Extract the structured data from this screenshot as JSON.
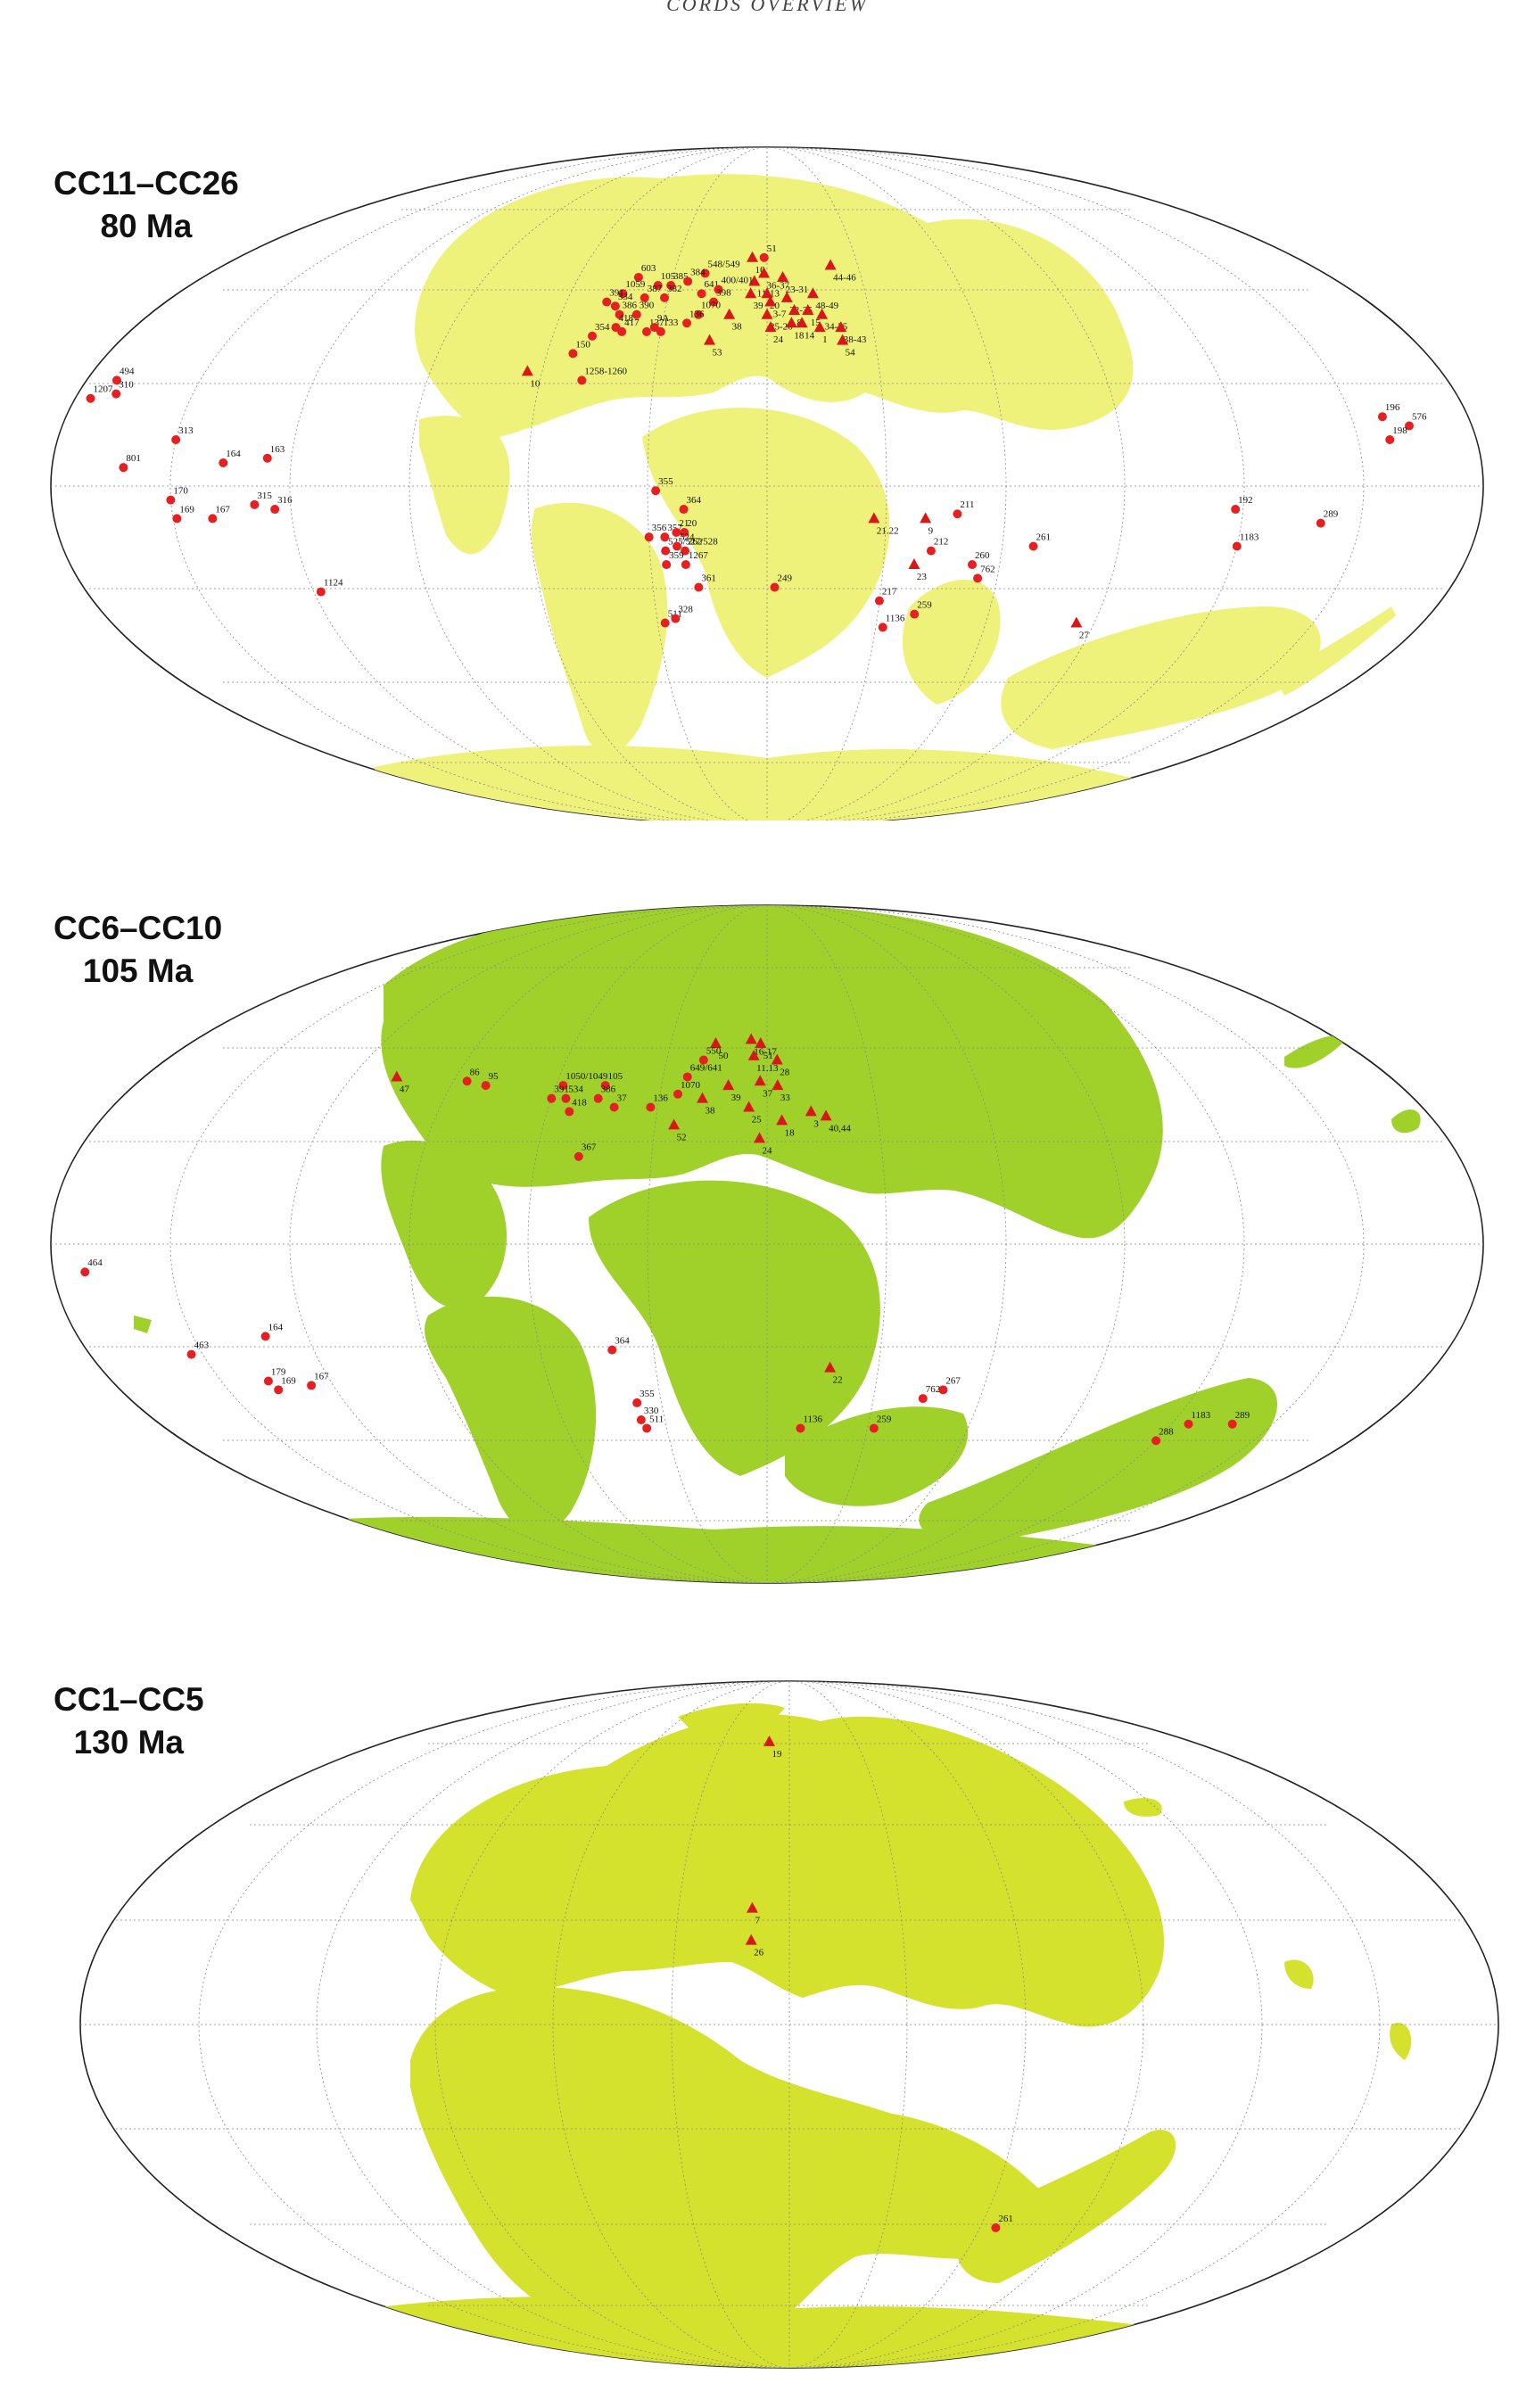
{
  "header": "CORDS OVERVIEW",
  "marker_colors": {
    "circle": "#e62020",
    "triangle": "#d81818"
  },
  "panels": [
    {
      "id": "cc11-cc26",
      "zone": "CC11–CC26",
      "age": "80 Ma",
      "land_color": "#eff27a",
      "sites": [
        {
          "label": "16",
          "shape": "triangle",
          "lon": -5,
          "lat": 52
        },
        {
          "label": "51",
          "shape": "circle",
          "lon": -1,
          "lat": 52
        },
        {
          "label": "36-37",
          "shape": "triangle",
          "lon": -1,
          "lat": 48
        },
        {
          "label": "11-13",
          "shape": "triangle",
          "lon": -4,
          "lat": 46
        },
        {
          "label": "23-31",
          "shape": "triangle",
          "lon": 5,
          "lat": 47
        },
        {
          "label": "44-46",
          "shape": "triangle",
          "lon": 21,
          "lat": 50
        },
        {
          "label": "548/549",
          "shape": "circle",
          "lon": -20,
          "lat": 48
        },
        {
          "label": "603",
          "shape": "circle",
          "lon": -41,
          "lat": 47
        },
        {
          "label": "1059",
          "shape": "circle",
          "lon": -44,
          "lat": 43
        },
        {
          "label": "105",
          "shape": "circle",
          "lon": -34,
          "lat": 45
        },
        {
          "label": "385",
          "shape": "circle",
          "lon": -30,
          "lat": 45
        },
        {
          "label": "384",
          "shape": "circle",
          "lon": -25,
          "lat": 46
        },
        {
          "label": "387",
          "shape": "circle",
          "lon": -37,
          "lat": 42
        },
        {
          "label": "382",
          "shape": "circle",
          "lon": -31,
          "lat": 42
        },
        {
          "label": "641",
          "shape": "circle",
          "lon": -20,
          "lat": 43
        },
        {
          "label": "400/401",
          "shape": "circle",
          "lon": -15,
          "lat": 44
        },
        {
          "label": "398",
          "shape": "circle",
          "lon": -16,
          "lat": 41
        },
        {
          "label": "391",
          "shape": "circle",
          "lon": -48,
          "lat": 41
        },
        {
          "label": "534",
          "shape": "circle",
          "lon": -45,
          "lat": 40
        },
        {
          "label": "386",
          "shape": "circle",
          "lon": -43,
          "lat": 38
        },
        {
          "label": "390",
          "shape": "circle",
          "lon": -38,
          "lat": 38
        },
        {
          "label": "1070",
          "shape": "circle",
          "lon": -20,
          "lat": 38
        },
        {
          "label": "136",
          "shape": "circle",
          "lon": -23,
          "lat": 36
        },
        {
          "label": "38",
          "shape": "triangle",
          "lon": -11,
          "lat": 38
        },
        {
          "label": "39",
          "shape": "triangle",
          "lon": -5,
          "lat": 43
        },
        {
          "label": "20",
          "shape": "triangle",
          "lon": 0,
          "lat": 43
        },
        {
          "label": "3-7",
          "shape": "triangle",
          "lon": 1,
          "lat": 41
        },
        {
          "label": "32-35",
          "shape": "triangle",
          "lon": 6,
          "lat": 42
        },
        {
          "label": "48-49",
          "shape": "triangle",
          "lon": 14,
          "lat": 43
        },
        {
          "label": "8",
          "shape": "triangle",
          "lon": 8,
          "lat": 39
        },
        {
          "label": "15",
          "shape": "triangle",
          "lon": 12,
          "lat": 39
        },
        {
          "label": "34-35",
          "shape": "triangle",
          "lon": 16,
          "lat": 38
        },
        {
          "label": "25-26",
          "shape": "triangle",
          "lon": 0,
          "lat": 38
        },
        {
          "label": "24",
          "shape": "triangle",
          "lon": 1,
          "lat": 35
        },
        {
          "label": "18",
          "shape": "triangle",
          "lon": 7,
          "lat": 36
        },
        {
          "label": "14",
          "shape": "triangle",
          "lon": 10,
          "lat": 36
        },
        {
          "label": "1",
          "shape": "triangle",
          "lon": 15,
          "lat": 35
        },
        {
          "label": "38-43",
          "shape": "triangle",
          "lon": 21,
          "lat": 35
        },
        {
          "label": "54",
          "shape": "triangle",
          "lon": 21,
          "lat": 32
        },
        {
          "label": "418",
          "shape": "circle",
          "lon": -43,
          "lat": 35
        },
        {
          "label": "417",
          "shape": "circle",
          "lon": -41,
          "lat": 34
        },
        {
          "label": "137",
          "shape": "circle",
          "lon": -34,
          "lat": 34
        },
        {
          "label": "9A",
          "shape": "circle",
          "lon": -32,
          "lat": 35
        },
        {
          "label": "133",
          "shape": "circle",
          "lon": -30,
          "lat": 34
        },
        {
          "label": "354",
          "shape": "circle",
          "lon": -49,
          "lat": 33
        },
        {
          "label": "53",
          "shape": "triangle",
          "lon": -16,
          "lat": 32
        },
        {
          "label": "150",
          "shape": "circle",
          "lon": -53,
          "lat": 29
        },
        {
          "label": "10",
          "shape": "triangle",
          "lon": -64,
          "lat": 25
        },
        {
          "label": "1258-1260",
          "shape": "circle",
          "lon": -49,
          "lat": 23
        },
        {
          "label": "494",
          "shape": "circle",
          "lon": -172,
          "lat": 23
        },
        {
          "label": "310",
          "shape": "circle",
          "lon": -170,
          "lat": 20
        },
        {
          "label": "1207",
          "shape": "circle",
          "lon": -176,
          "lat": 19
        },
        {
          "label": "196",
          "shape": "circle",
          "lon": 158,
          "lat": 15
        },
        {
          "label": "576",
          "shape": "circle",
          "lon": 164,
          "lat": 13
        },
        {
          "label": "198",
          "shape": "circle",
          "lon": 158,
          "lat": 10
        },
        {
          "label": "313",
          "shape": "circle",
          "lon": -150,
          "lat": 10
        },
        {
          "label": "164",
          "shape": "circle",
          "lon": -137,
          "lat": 5
        },
        {
          "label": "163",
          "shape": "circle",
          "lon": -126,
          "lat": 6
        },
        {
          "label": "801",
          "shape": "circle",
          "lon": -162,
          "lat": 4
        },
        {
          "label": "170",
          "shape": "circle",
          "lon": -150,
          "lat": -3
        },
        {
          "label": "315",
          "shape": "circle",
          "lon": -129,
          "lat": -4
        },
        {
          "label": "316",
          "shape": "circle",
          "lon": -124,
          "lat": -5
        },
        {
          "label": "169",
          "shape": "circle",
          "lon": -149,
          "lat": -7
        },
        {
          "label": "167",
          "shape": "circle",
          "lon": -140,
          "lat": -7
        },
        {
          "label": "355",
          "shape": "circle",
          "lon": -28,
          "lat": -1
        },
        {
          "label": "364",
          "shape": "circle",
          "lon": -21,
          "lat": -5
        },
        {
          "label": "356",
          "shape": "circle",
          "lon": -30,
          "lat": -11
        },
        {
          "label": "357",
          "shape": "circle",
          "lon": -26,
          "lat": -11
        },
        {
          "label": "21",
          "shape": "circle",
          "lon": -23,
          "lat": -10
        },
        {
          "label": "20",
          "shape": "circle",
          "lon": -21,
          "lat": -10
        },
        {
          "label": "525/527/528",
          "shape": "circle",
          "lon": -26,
          "lat": -14
        },
        {
          "label": "524",
          "shape": "circle",
          "lon": -23,
          "lat": -13
        },
        {
          "label": "262",
          "shape": "circle",
          "lon": -21,
          "lat": -14
        },
        {
          "label": "359",
          "shape": "circle",
          "lon": -26,
          "lat": -17
        },
        {
          "label": "1267",
          "shape": "circle",
          "lon": -21,
          "lat": -17
        },
        {
          "label": "361",
          "shape": "circle",
          "lon": -18,
          "lat": -22
        },
        {
          "label": "249",
          "shape": "circle",
          "lon": 2,
          "lat": -22
        },
        {
          "label": "511",
          "shape": "circle",
          "lon": -28,
          "lat": -30
        },
        {
          "label": "328",
          "shape": "circle",
          "lon": -25,
          "lat": -29
        },
        {
          "label": "1124",
          "shape": "circle",
          "lon": -118,
          "lat": -23
        },
        {
          "label": "21.22",
          "shape": "triangle",
          "lon": 27,
          "lat": -7
        },
        {
          "label": "9",
          "shape": "triangle",
          "lon": 40,
          "lat": -7
        },
        {
          "label": "211",
          "shape": "circle",
          "lon": 48,
          "lat": -6
        },
        {
          "label": "212",
          "shape": "circle",
          "lon": 42,
          "lat": -14
        },
        {
          "label": "23",
          "shape": "triangle",
          "lon": 38,
          "lat": -17
        },
        {
          "label": "261",
          "shape": "circle",
          "lon": 68,
          "lat": -13
        },
        {
          "label": "260",
          "shape": "circle",
          "lon": 53,
          "lat": -17
        },
        {
          "label": "762",
          "shape": "circle",
          "lon": 55,
          "lat": -20
        },
        {
          "label": "217",
          "shape": "circle",
          "lon": 30,
          "lat": -25
        },
        {
          "label": "259",
          "shape": "circle",
          "lon": 40,
          "lat": -28
        },
        {
          "label": "1136",
          "shape": "circle",
          "lon": 32,
          "lat": -31
        },
        {
          "label": "27",
          "shape": "triangle",
          "lon": 85,
          "lat": -30
        },
        {
          "label": "192",
          "shape": "circle",
          "lon": 118,
          "lat": -5
        },
        {
          "label": "289",
          "shape": "circle",
          "lon": 140,
          "lat": -8
        },
        {
          "label": "1183",
          "shape": "circle",
          "lon": 120,
          "lat": -13
        }
      ]
    },
    {
      "id": "cc6-cc10",
      "zone": "CC6–CC10",
      "age": "105 Ma",
      "land_color": "#9fd12a",
      "sites": [
        {
          "label": "16-17",
          "shape": "triangle",
          "lon": -5,
          "lat": 46
        },
        {
          "label": "50",
          "shape": "triangle",
          "lon": -16,
          "lat": 45
        },
        {
          "label": "51",
          "shape": "triangle",
          "lon": -2,
          "lat": 45
        },
        {
          "label": "550",
          "shape": "circle",
          "lon": -19,
          "lat": 41
        },
        {
          "label": "11.13",
          "shape": "triangle",
          "lon": -4,
          "lat": 42
        },
        {
          "label": "28",
          "shape": "triangle",
          "lon": 3,
          "lat": 41
        },
        {
          "label": "47",
          "shape": "triangle",
          "lon": -107,
          "lat": 37
        },
        {
          "label": "86",
          "shape": "circle",
          "lon": -86,
          "lat": 36
        },
        {
          "label": "95",
          "shape": "circle",
          "lon": -80,
          "lat": 35
        },
        {
          "label": "1050/1049",
          "shape": "circle",
          "lon": -58,
          "lat": 35
        },
        {
          "label": "105",
          "shape": "circle",
          "lon": -46,
          "lat": 35
        },
        {
          "label": "649/641",
          "shape": "circle",
          "lon": -23,
          "lat": 37
        },
        {
          "label": "1070",
          "shape": "circle",
          "lon": -25,
          "lat": 33
        },
        {
          "label": "39",
          "shape": "triangle",
          "lon": -11,
          "lat": 35
        },
        {
          "label": "37",
          "shape": "triangle",
          "lon": -2,
          "lat": 36
        },
        {
          "label": "33",
          "shape": "triangle",
          "lon": 3,
          "lat": 35
        },
        {
          "label": "391",
          "shape": "circle",
          "lon": -60,
          "lat": 32
        },
        {
          "label": "534",
          "shape": "circle",
          "lon": -56,
          "lat": 32
        },
        {
          "label": "386",
          "shape": "circle",
          "lon": -47,
          "lat": 32
        },
        {
          "label": "38",
          "shape": "triangle",
          "lon": -18,
          "lat": 32
        },
        {
          "label": "418",
          "shape": "circle",
          "lon": -54,
          "lat": 29
        },
        {
          "label": "37",
          "shape": "circle",
          "lon": -42,
          "lat": 30
        },
        {
          "label": "136",
          "shape": "circle",
          "lon": -32,
          "lat": 30
        },
        {
          "label": "25",
          "shape": "triangle",
          "lon": -5,
          "lat": 30
        },
        {
          "label": "3",
          "shape": "triangle",
          "lon": 12,
          "lat": 29
        },
        {
          "label": "40,44",
          "shape": "triangle",
          "lon": 16,
          "lat": 28
        },
        {
          "label": "18",
          "shape": "triangle",
          "lon": 4,
          "lat": 27
        },
        {
          "label": "52",
          "shape": "triangle",
          "lon": -25,
          "lat": 26
        },
        {
          "label": "24",
          "shape": "triangle",
          "lon": -2,
          "lat": 23
        },
        {
          "label": "367",
          "shape": "circle",
          "lon": -49,
          "lat": 19
        },
        {
          "label": "464",
          "shape": "circle",
          "lon": -172,
          "lat": -6
        },
        {
          "label": "164",
          "shape": "circle",
          "lon": -131,
          "lat": -20
        },
        {
          "label": "463",
          "shape": "circle",
          "lon": -153,
          "lat": -24
        },
        {
          "label": "364",
          "shape": "circle",
          "lon": -41,
          "lat": -23
        },
        {
          "label": "179",
          "shape": "circle",
          "lon": -137,
          "lat": -30
        },
        {
          "label": "167",
          "shape": "circle",
          "lon": -126,
          "lat": -31
        },
        {
          "label": "169",
          "shape": "circle",
          "lon": -136,
          "lat": -32
        },
        {
          "label": "22",
          "shape": "triangle",
          "lon": 17,
          "lat": -27
        },
        {
          "label": "267",
          "shape": "circle",
          "lon": 49,
          "lat": -32
        },
        {
          "label": "762",
          "shape": "circle",
          "lon": 44,
          "lat": -34
        },
        {
          "label": "355",
          "shape": "circle",
          "lon": -37,
          "lat": -35
        },
        {
          "label": "330",
          "shape": "circle",
          "lon": -37,
          "lat": -39
        },
        {
          "label": "511",
          "shape": "circle",
          "lon": -36,
          "lat": -41
        },
        {
          "label": "1136",
          "shape": "circle",
          "lon": 10,
          "lat": -41
        },
        {
          "label": "259",
          "shape": "circle",
          "lon": 32,
          "lat": -41
        },
        {
          "label": "1183",
          "shape": "circle",
          "lon": 125,
          "lat": -40
        },
        {
          "label": "289",
          "shape": "circle",
          "lon": 138,
          "lat": -40
        },
        {
          "label": "288",
          "shape": "circle",
          "lon": 120,
          "lat": -44
        }
      ]
    },
    {
      "id": "cc1-cc5",
      "zone": "CC1–CC5",
      "age": "130 Ma",
      "land_color": "#d4e22e",
      "sites": [
        {
          "label": "19",
          "shape": "triangle",
          "lon": -9,
          "lat": 66
        },
        {
          "label": "7",
          "shape": "triangle",
          "lon": -10,
          "lat": 25
        },
        {
          "label": "26",
          "shape": "triangle",
          "lon": -10,
          "lat": 18
        },
        {
          "label": "261",
          "shape": "circle",
          "lon": 65,
          "lat": -45
        }
      ]
    }
  ]
}
